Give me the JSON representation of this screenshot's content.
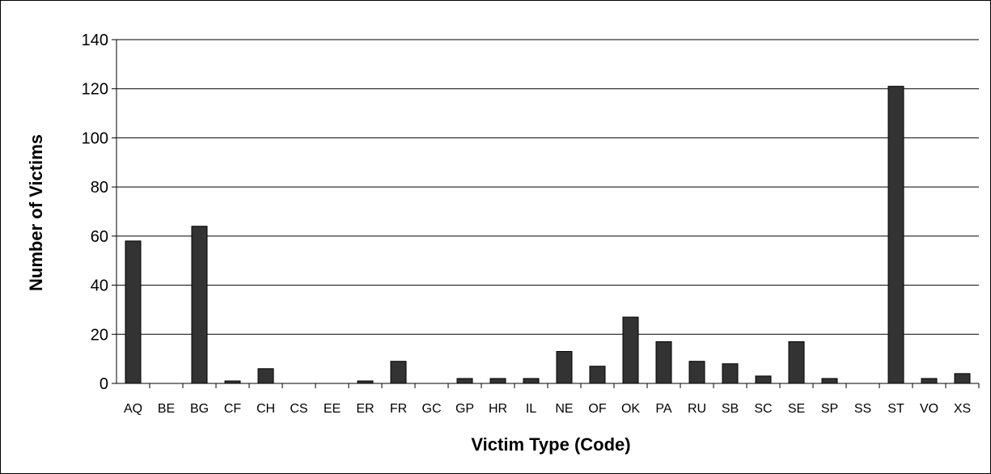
{
  "chart_data": {
    "type": "bar",
    "xlabel": "Victim Type (Code)",
    "ylabel": "Number of Victims",
    "ylim": [
      0,
      140
    ],
    "yticks": [
      0,
      20,
      40,
      60,
      80,
      100,
      120,
      140
    ],
    "grid": true,
    "legend": "none",
    "bar_color": "#333333",
    "categories": [
      "AQ",
      "BE",
      "BG",
      "CF",
      "CH",
      "CS",
      "EE",
      "ER",
      "FR",
      "GC",
      "GP",
      "HR",
      "IL",
      "NE",
      "OF",
      "OK",
      "PA",
      "RU",
      "SB",
      "SC",
      "SE",
      "SP",
      "SS",
      "ST",
      "VO",
      "XS"
    ],
    "values": [
      58,
      0,
      64,
      1,
      6,
      0,
      0,
      1,
      9,
      0,
      2,
      2,
      2,
      13,
      7,
      27,
      17,
      9,
      8,
      3,
      17,
      2,
      0,
      121,
      2,
      4
    ]
  }
}
